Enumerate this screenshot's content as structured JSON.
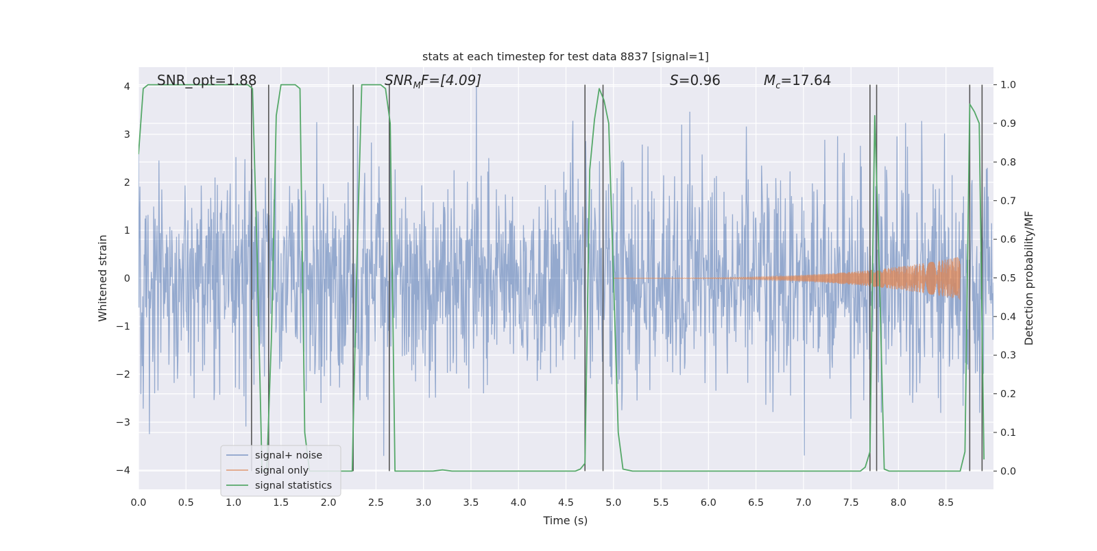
{
  "chart_data": {
    "type": "line",
    "title": "stats at each timestep for test data 8837 [signal=1]",
    "xlabel": "Time (s)",
    "ylabel": "Whitened strain",
    "ylabel_right": "Detection probability/MF",
    "xlim": [
      0.0,
      9.0
    ],
    "ylim": [
      -4.4,
      4.4
    ],
    "ylim_right": [
      -0.0473,
      1.0455
    ],
    "x_ticks": [
      "0.0",
      "0.5",
      "1.0",
      "1.5",
      "2.0",
      "2.5",
      "3.0",
      "3.5",
      "4.0",
      "4.5",
      "5.0",
      "5.5",
      "6.0",
      "6.5",
      "7.0",
      "7.5",
      "8.0",
      "8.5"
    ],
    "y_ticks": [
      "4",
      "3",
      "2",
      "1",
      "0",
      "−1",
      "−2",
      "−3",
      "−4"
    ],
    "y_ticks_right": [
      "1.0",
      "0.9",
      "0.8",
      "0.7",
      "0.6",
      "0.5",
      "0.4",
      "0.3",
      "0.2",
      "0.1",
      "0.0"
    ],
    "grid": true,
    "legend_position": "lower-left",
    "annotations": {
      "snr_opt": "SNR_opt=1.88",
      "snr_mf_prefix": "SNR",
      "snr_mf_sub": "M",
      "snr_mf_suffix": "F=[4.09]",
      "s_prefix": "S",
      "s_suffix": "=0.96",
      "mc_prefix": "M",
      "mc_sub": "c",
      "mc_suffix": "=17.64"
    },
    "colors": {
      "background": "#eaeaf2",
      "grid": "#ffffff",
      "noise": "#4c72b0",
      "signal": "#dd8452",
      "statistics": "#55a868",
      "vlines": "#555555"
    },
    "series": [
      {
        "name": "signal+ noise",
        "axis": "left",
        "description_scale": {
          "std": 1.15,
          "spike_max": 4.0,
          "duration": 9.0,
          "samples": 1800
        }
      },
      {
        "name": "signal only",
        "axis": "left",
        "chirp": {
          "start": 5.0,
          "end": 8.65,
          "peak_amplitude": 0.45
        }
      },
      {
        "name": "signal statistics",
        "axis": "right",
        "x": [
          0.0,
          0.05,
          0.1,
          0.2,
          0.3,
          0.4,
          0.5,
          0.6,
          0.7,
          0.8,
          0.9,
          1.0,
          1.1,
          1.15,
          1.2,
          1.25,
          1.3,
          1.35,
          1.4,
          1.45,
          1.5,
          1.55,
          1.6,
          1.65,
          1.7,
          1.75,
          1.8,
          1.85,
          1.9,
          2.0,
          2.1,
          2.2,
          2.25,
          2.3,
          2.35,
          2.4,
          2.5,
          2.55,
          2.6,
          2.65,
          2.7,
          2.75,
          2.8,
          2.9,
          3.0,
          3.1,
          3.2,
          3.3,
          3.4,
          3.5,
          3.6,
          3.7,
          3.8,
          3.9,
          4.0,
          4.1,
          4.2,
          4.3,
          4.4,
          4.5,
          4.6,
          4.65,
          4.7,
          4.75,
          4.8,
          4.85,
          4.9,
          4.95,
          5.0,
          5.05,
          5.1,
          5.2,
          5.3,
          5.4,
          5.5,
          5.6,
          5.7,
          5.8,
          5.9,
          6.0,
          6.2,
          6.4,
          6.6,
          6.8,
          7.0,
          7.2,
          7.4,
          7.6,
          7.65,
          7.7,
          7.75,
          7.8,
          7.85,
          7.9,
          8.0,
          8.2,
          8.4,
          8.6,
          8.65,
          8.7,
          8.75,
          8.8,
          8.85,
          8.9
        ],
        "values": [
          0.82,
          0.99,
          1.0,
          1.0,
          1.0,
          1.0,
          1.0,
          1.0,
          1.0,
          1.0,
          1.0,
          1.0,
          1.0,
          1.0,
          0.99,
          0.55,
          0.0,
          0.0,
          0.35,
          0.92,
          1.0,
          1.0,
          1.0,
          1.0,
          0.99,
          0.1,
          0.0,
          0.0,
          0.0,
          0.0,
          0.0,
          0.0,
          0.0,
          0.55,
          1.0,
          1.0,
          1.0,
          1.0,
          0.99,
          0.9,
          0.0,
          0.0,
          0.0,
          0.0,
          0.0,
          0.0,
          0.003,
          0.0,
          0.0,
          0.0,
          0.0,
          0.0,
          0.0,
          0.0,
          0.0,
          0.0,
          0.0,
          0.0,
          0.0,
          0.0,
          0.0,
          0.005,
          0.02,
          0.78,
          0.91,
          0.99,
          0.96,
          0.9,
          0.5,
          0.1,
          0.005,
          0.0,
          0.0,
          0.0,
          0.0,
          0.0,
          0.0,
          0.0,
          0.0,
          0.0,
          0.0,
          0.0,
          0.0,
          0.0,
          0.0,
          0.0,
          0.0,
          0.0,
          0.01,
          0.05,
          0.92,
          0.5,
          0.005,
          0.0,
          0.0,
          0.0,
          0.0,
          0.0,
          0.0,
          0.05,
          0.95,
          0.93,
          0.9,
          0.03
        ]
      }
    ],
    "vertical_lines_x": [
      1.19,
      1.37,
      2.26,
      2.64,
      4.7,
      4.89,
      7.7,
      7.77,
      8.75,
      8.88
    ]
  },
  "legend": {
    "items": [
      "signal+ noise",
      "signal only",
      "signal statistics"
    ]
  }
}
